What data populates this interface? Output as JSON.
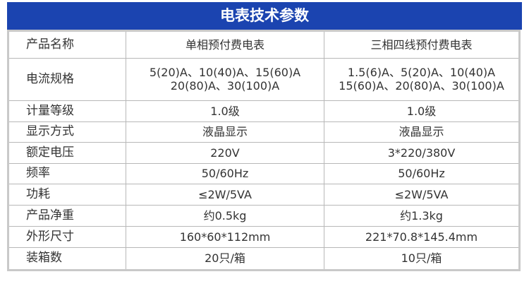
{
  "title": "电表技术参数",
  "rows": [
    {
      "label": "产品名称",
      "single": [
        "单相预付费电表"
      ],
      "three": [
        "三相四线预付费电表"
      ]
    },
    {
      "label": "电流规格",
      "single": [
        "5(20)A、10(40)A、15(60)A",
        "20(80)A、30(100)A"
      ],
      "three": [
        "1.5(6)A、5(20)A、10(40)A",
        "15(60)A、20(80)A、30(100)A"
      ]
    },
    {
      "label": "计量等级",
      "single": [
        "1.0级"
      ],
      "three": [
        "1.0级"
      ]
    },
    {
      "label": "显示方式",
      "single": [
        "液晶显示"
      ],
      "three": [
        "液晶显示"
      ]
    },
    {
      "label": "额定电压",
      "single": [
        "220V"
      ],
      "three": [
        "3*220/380V"
      ]
    },
    {
      "label": "频率",
      "single": [
        "50/60Hz"
      ],
      "three": [
        "50/60Hz"
      ]
    },
    {
      "label": "功耗",
      "single": [
        "≤2W/5VA"
      ],
      "three": [
        "≤2W/5VA"
      ]
    },
    {
      "label": "产品净重",
      "single": [
        "约0.5kg"
      ],
      "three": [
        "约1.3kg"
      ]
    },
    {
      "label": "外形尺寸",
      "single": [
        "160*60*112mm"
      ],
      "three": [
        "221*70.8*145.4mm"
      ]
    },
    {
      "label": "装箱数",
      "single": [
        "20只/箱"
      ],
      "three": [
        "10只/箱"
      ]
    }
  ]
}
